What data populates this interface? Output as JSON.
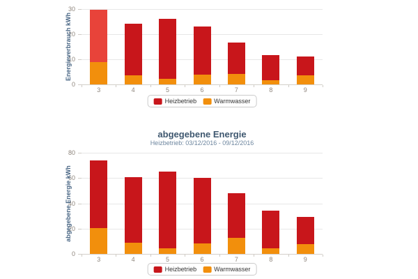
{
  "page": {
    "background": "#ffffff"
  },
  "palette": {
    "heizbetrieb": "#c8161b",
    "heizbetrieb_highlight": "#e8433a",
    "warmwasser": "#f28f0c",
    "title": "#3e576f",
    "subtitle": "#6d869f",
    "axis_title": "#4a6785",
    "tick_label": "#8e857c",
    "gridline": "#e7e7e7",
    "axis_line": "#d3cfc9",
    "legend_border": "#cbcbcb",
    "legend_text": "#333333"
  },
  "chart_data": [
    {
      "type": "bar",
      "stacked": true,
      "title": "",
      "subtitle": "",
      "xlabel": "",
      "ylabel": "Energieverbrauch kWh",
      "ylim": [
        0,
        30
      ],
      "yticks": [
        0,
        10,
        20,
        30
      ],
      "grid": true,
      "legend_position": "bottom",
      "categories": [
        "3",
        "4",
        "5",
        "6",
        "7",
        "8",
        "9"
      ],
      "series": [
        {
          "name": "Heizbetrieb",
          "color": "#c8161b",
          "highlight": {
            "index": 0,
            "color": "#e8433a"
          },
          "values": [
            20.8,
            20.6,
            23.8,
            19.3,
            12.4,
            10.0,
            7.5
          ]
        },
        {
          "name": "Warmwasser",
          "color": "#f28f0c",
          "values": [
            9.0,
            3.7,
            2.2,
            3.8,
            4.3,
            1.8,
            3.6
          ]
        }
      ]
    },
    {
      "type": "bar",
      "stacked": true,
      "title": "abgegebene Energie",
      "subtitle": "Heizbetrieb: 03/12/2016 - 09/12/2016",
      "xlabel": "",
      "ylabel": "abgegebene Energie kWh",
      "ylim": [
        0,
        80
      ],
      "yticks": [
        0,
        20,
        40,
        60,
        80
      ],
      "grid": true,
      "legend_position": "bottom",
      "categories": [
        "3",
        "4",
        "5",
        "6",
        "7",
        "8",
        "9"
      ],
      "series": [
        {
          "name": "Heizbetrieb",
          "color": "#c8161b",
          "values": [
            53.5,
            51.5,
            60.5,
            51.5,
            35.5,
            29.5,
            22.0
          ]
        },
        {
          "name": "Warmwasser",
          "color": "#f28f0c",
          "values": [
            20.5,
            9.0,
            4.5,
            8.5,
            12.5,
            4.5,
            7.5
          ]
        }
      ]
    }
  ]
}
